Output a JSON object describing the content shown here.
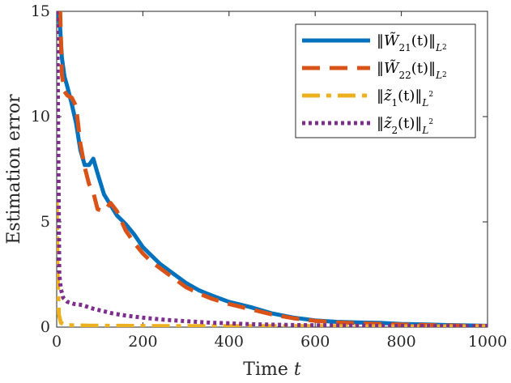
{
  "chart_data": {
    "type": "line",
    "xlabel": "Time",
    "xlabel_var": "t",
    "ylabel": "Estimation error",
    "xlim": [
      0,
      1000
    ],
    "ylim": [
      0,
      15
    ],
    "xticks": [
      0,
      200,
      400,
      600,
      800,
      1000
    ],
    "yticks": [
      0,
      5,
      10,
      15
    ],
    "grid": false,
    "legend_position": "top-right",
    "series": [
      {
        "name": "||W̃21(t)||L2",
        "legend_parts": {
          "pre": "‖",
          "base": "W̃",
          "sub": "21",
          "mid": "(t)‖",
          "norm_sub": "L",
          "norm_subsub": "2"
        },
        "color": "#0072BD",
        "dash": "solid",
        "x": [
          3,
          8,
          12,
          18,
          25,
          35,
          45,
          55,
          65,
          75,
          85,
          95,
          110,
          125,
          140,
          160,
          180,
          200,
          220,
          240,
          260,
          280,
          300,
          330,
          360,
          400,
          450,
          500,
          550,
          600,
          650,
          700,
          750,
          800,
          850,
          900,
          950,
          1000
        ],
        "y": [
          15,
          14.2,
          12.8,
          11.9,
          11.4,
          10.6,
          9.7,
          8.4,
          7.7,
          7.7,
          8.0,
          7.3,
          6.3,
          5.8,
          5.3,
          4.9,
          4.4,
          3.8,
          3.4,
          3.0,
          2.7,
          2.4,
          2.1,
          1.75,
          1.5,
          1.2,
          0.95,
          0.65,
          0.45,
          0.32,
          0.25,
          0.22,
          0.2,
          0.15,
          0.13,
          0.1,
          0.08,
          0.06
        ]
      },
      {
        "name": "||W̃22(t)||L2",
        "legend_parts": {
          "pre": "‖",
          "base": "W̃",
          "sub": "22",
          "mid": "(t)‖",
          "norm_sub": "L",
          "norm_subsub": "2"
        },
        "color": "#D95319",
        "dash": "dashed",
        "x": [
          3,
          8,
          12,
          18,
          25,
          35,
          45,
          55,
          65,
          75,
          85,
          95,
          110,
          125,
          140,
          160,
          180,
          200,
          220,
          240,
          260,
          280,
          300,
          330,
          360,
          400,
          450,
          500,
          550,
          600,
          650,
          700,
          750,
          800,
          850,
          900,
          950,
          1000
        ],
        "y": [
          15,
          15,
          12.0,
          11.2,
          11.0,
          10.9,
          10.5,
          8.7,
          7.6,
          6.8,
          6.4,
          5.6,
          5.5,
          5.9,
          5.5,
          4.6,
          4.0,
          3.5,
          3.1,
          2.8,
          2.5,
          2.2,
          1.9,
          1.6,
          1.35,
          1.1,
          0.85,
          0.6,
          0.42,
          0.3,
          0.22,
          0.18,
          0.15,
          0.12,
          0.1,
          0.08,
          0.06,
          0.05
        ]
      },
      {
        "name": "||z̃1(t)||L2",
        "legend_parts": {
          "pre": "‖",
          "base": "z̃",
          "sub": "1",
          "mid": "(t)‖",
          "norm_sub": "L",
          "norm_sup": "2"
        },
        "color": "#EDB120",
        "dash": "dashdot",
        "x": [
          0,
          2,
          5,
          10,
          20,
          40,
          80,
          150,
          250,
          400,
          600,
          800,
          1000
        ],
        "y": [
          6.0,
          2.5,
          0.6,
          0.2,
          0.1,
          0.08,
          0.07,
          0.06,
          0.05,
          0.05,
          0.05,
          0.04,
          0.04
        ]
      },
      {
        "name": "||z̃2(t)||L2",
        "legend_parts": {
          "pre": "‖",
          "base": "z̃",
          "sub": "2",
          "mid": "(t)‖",
          "norm_sub": "L",
          "norm_sup": "2"
        },
        "color": "#7E2F8E",
        "dash": "dotted",
        "x": [
          0,
          2,
          4,
          6,
          10,
          15,
          25,
          40,
          60,
          80,
          100,
          130,
          160,
          200,
          250,
          300,
          350,
          400,
          450,
          500,
          550,
          600,
          700,
          800,
          900,
          1000
        ],
        "y": [
          15,
          13.0,
          8.0,
          2.5,
          1.8,
          1.4,
          1.2,
          1.1,
          1.05,
          0.9,
          0.8,
          0.65,
          0.55,
          0.45,
          0.35,
          0.28,
          0.22,
          0.18,
          0.14,
          0.12,
          0.1,
          0.09,
          0.07,
          0.06,
          0.05,
          0.05
        ]
      }
    ]
  }
}
